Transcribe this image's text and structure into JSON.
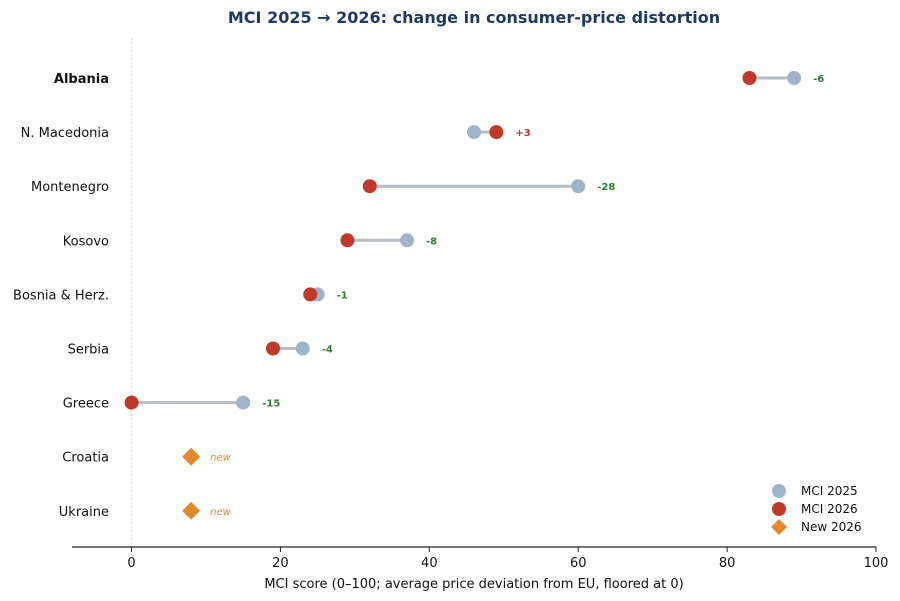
{
  "chart_data": {
    "type": "dumbbell",
    "title": "MCI 2025 → 2026: change in consumer-price distortion",
    "xlabel": "MCI score (0–100; average price deviation from EU, floored at 0)",
    "xlim": [
      -8,
      100
    ],
    "xticks": [
      0,
      20,
      40,
      60,
      80,
      100
    ],
    "grid": false,
    "legend_position": "bottom-right",
    "legend": [
      {
        "label": "MCI 2025",
        "marker": "circle",
        "color": "#9fb3cb"
      },
      {
        "label": "MCI 2026",
        "marker": "circle",
        "color": "#c0392b"
      },
      {
        "label": "New 2026",
        "marker": "diamond",
        "color": "#e08a2c"
      }
    ],
    "colors": {
      "mci2025": "#9fb3cb",
      "mci2026": "#c0392b",
      "new2026": "#e08a2c",
      "connector": "#b8bcc4",
      "decrease_text": "#2e7d32",
      "increase_text": "#b03a2e",
      "new_text": "#e08a2c"
    },
    "rows": [
      {
        "country": "Albania",
        "bold": true,
        "mci2025": 89,
        "mci2026": 83,
        "delta": "-6",
        "new": false
      },
      {
        "country": "N. Macedonia",
        "bold": false,
        "mci2025": 46,
        "mci2026": 49,
        "delta": "+3",
        "new": false
      },
      {
        "country": "Montenegro",
        "bold": false,
        "mci2025": 60,
        "mci2026": 32,
        "delta": "-28",
        "new": false
      },
      {
        "country": "Kosovo",
        "bold": false,
        "mci2025": 37,
        "mci2026": 29,
        "delta": "-8",
        "new": false
      },
      {
        "country": "Bosnia & Herz.",
        "bold": false,
        "mci2025": 25,
        "mci2026": 24,
        "delta": "-1",
        "new": false
      },
      {
        "country": "Serbia",
        "bold": false,
        "mci2025": 23,
        "mci2026": 19,
        "delta": "-4",
        "new": false
      },
      {
        "country": "Greece",
        "bold": false,
        "mci2025": 15,
        "mci2026": 0,
        "delta": "-15",
        "new": false
      },
      {
        "country": "Croatia",
        "bold": false,
        "mci2025": null,
        "mci2026": 8,
        "delta": "new",
        "new": true
      },
      {
        "country": "Ukraine",
        "bold": false,
        "mci2025": null,
        "mci2026": 8,
        "delta": "new",
        "new": true
      }
    ]
  }
}
